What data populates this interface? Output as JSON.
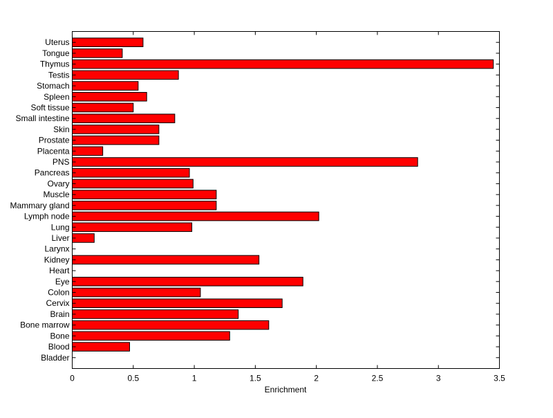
{
  "chart_data": {
    "type": "bar",
    "orientation": "horizontal",
    "xlabel": "Enrichment",
    "ylabel": "",
    "title": "",
    "xlim": [
      0,
      3.5
    ],
    "xticks": [
      "0",
      "0.5",
      "1",
      "1.5",
      "2",
      "2.5",
      "3",
      "3.5"
    ],
    "grid": false,
    "bar_color": "#ff0000",
    "categories": [
      "Bladder",
      "Blood",
      "Bone",
      "Bone marrow",
      "Brain",
      "Cervix",
      "Colon",
      "Eye",
      "Heart",
      "Kidney",
      "Larynx",
      "Liver",
      "Lung",
      "Lymph node",
      "Mammary gland",
      "Muscle",
      "Ovary",
      "Pancreas",
      "PNS",
      "Placenta",
      "Prostate",
      "Skin",
      "Small intestine",
      "Soft tissue",
      "Spleen",
      "Stomach",
      "Testis",
      "Thymus",
      "Tongue",
      "Uterus"
    ],
    "values": [
      0,
      0.47,
      1.29,
      1.61,
      1.36,
      1.72,
      1.05,
      1.89,
      0,
      1.53,
      0,
      0.18,
      0.98,
      2.02,
      1.18,
      1.18,
      0.99,
      0.96,
      2.83,
      0.25,
      0.71,
      0.71,
      0.84,
      0.5,
      0.61,
      0.54,
      0.87,
      3.45,
      0.41,
      0.58
    ]
  }
}
